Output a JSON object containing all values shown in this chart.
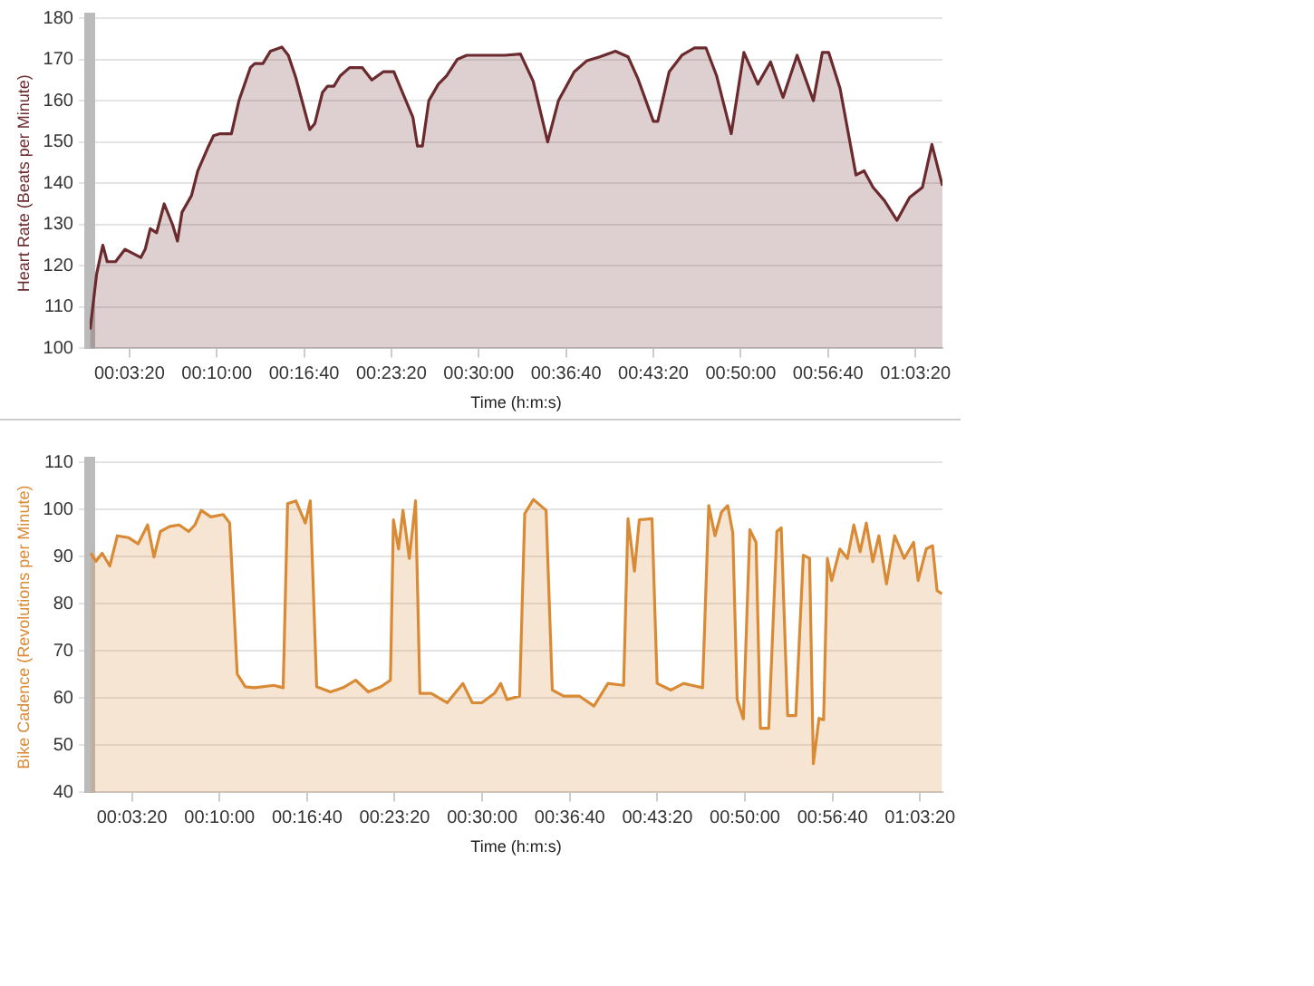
{
  "chart_data": [
    {
      "type": "area",
      "xlabel": "Time (h:m:s)",
      "ylabel": "Heart Rate (Beats per Minute)",
      "grid": "y",
      "legend": false,
      "marker": "none",
      "line_style": "solid",
      "xlim": [
        0.005,
        1.09
      ],
      "ylim": [
        100,
        180
      ],
      "yticks": [
        100,
        110,
        120,
        130,
        140,
        150,
        160,
        170,
        180
      ],
      "xticks": [
        {
          "value": 0.0556,
          "label": "00:03:20"
        },
        {
          "value": 0.1667,
          "label": "00:10:00"
        },
        {
          "value": 0.2778,
          "label": "00:16:40"
        },
        {
          "value": 0.3889,
          "label": "00:23:20"
        },
        {
          "value": 0.5,
          "label": "00:30:00"
        },
        {
          "value": 0.6111,
          "label": "00:36:40"
        },
        {
          "value": 0.7222,
          "label": "00:43:20"
        },
        {
          "value": 0.8333,
          "label": "00:50:00"
        },
        {
          "value": 0.9444,
          "label": "00:56:40"
        },
        {
          "value": 1.0556,
          "label": "01:03:20"
        }
      ],
      "series": [
        {
          "color": "#6b2a2e",
          "x": [
            0.0056,
            0.0138,
            0.0217,
            0.0273,
            0.0379,
            0.05,
            0.07,
            0.0756,
            0.0821,
            0.0901,
            0.0998,
            0.1104,
            0.1167,
            0.1225,
            0.1345,
            0.1425,
            0.1563,
            0.1626,
            0.1708,
            0.1853,
            0.1949,
            0.2094,
            0.215,
            0.2254,
            0.235,
            0.2495,
            0.2577,
            0.2674,
            0.285,
            0.2915,
            0.3012,
            0.3075,
            0.3157,
            0.3237,
            0.3357,
            0.3519,
            0.364,
            0.3785,
            0.392,
            0.4041,
            0.4162,
            0.422,
            0.4283,
            0.4365,
            0.4486,
            0.4589,
            0.4727,
            0.4848,
            0.5007,
            0.5331,
            0.5531,
            0.5693,
            0.5877,
            0.6014,
            0.6215,
            0.6377,
            0.6539,
            0.6739,
            0.6901,
            0.7022,
            0.7222,
            0.7278,
            0.7423,
            0.7585,
            0.7746,
            0.7891,
            0.8027,
            0.8213,
            0.8374,
            0.8551,
            0.8713,
            0.8872,
            0.9051,
            0.9258,
            0.9372,
            0.9452,
            0.9597,
            0.98,
            0.9903,
            1.0017,
            1.0162,
            1.0321,
            1.0483,
            1.0645,
            1.0766,
            1.09
          ],
          "values": [
            104.6,
            118,
            125,
            121,
            121,
            124,
            122,
            124,
            129,
            128,
            135,
            130,
            126,
            133,
            137,
            143,
            149,
            151.5,
            152,
            152,
            160,
            168,
            169,
            169,
            172,
            173,
            171,
            165.5,
            153,
            154.5,
            162,
            163.5,
            163.5,
            166,
            168,
            168,
            165,
            167,
            167,
            161.5,
            156,
            149,
            149,
            160,
            164,
            166,
            170,
            171,
            171,
            171,
            171.3,
            164.7,
            150,
            160,
            167,
            169.7,
            170.6,
            172,
            170.6,
            165.5,
            155,
            155,
            167,
            171,
            172.8,
            172.8,
            166,
            152,
            171.7,
            164,
            169.4,
            160.8,
            171,
            160,
            171.7,
            171.7,
            163,
            142,
            143,
            139,
            135.8,
            131,
            136.6,
            139,
            149.4,
            139.4
          ]
        }
      ]
    },
    {
      "type": "area",
      "xlabel": "Time (h:m:s)",
      "ylabel": "Bike Cadence (Revolutions per Minute)",
      "grid": "y",
      "legend": false,
      "marker": "none",
      "line_style": "solid",
      "xlim": [
        0.002,
        1.084
      ],
      "ylim": [
        40,
        110
      ],
      "yticks": [
        40,
        50,
        60,
        70,
        80,
        90,
        100,
        110
      ],
      "xticks": [
        {
          "value": 0.0556,
          "label": "00:03:20"
        },
        {
          "value": 0.1667,
          "label": "00:10:00"
        },
        {
          "value": 0.2778,
          "label": "00:16:40"
        },
        {
          "value": 0.3889,
          "label": "00:23:20"
        },
        {
          "value": 0.5,
          "label": "00:30:00"
        },
        {
          "value": 0.6111,
          "label": "00:36:40"
        },
        {
          "value": 0.7222,
          "label": "00:43:20"
        },
        {
          "value": 0.8333,
          "label": "00:50:00"
        },
        {
          "value": 0.9444,
          "label": "00:56:40"
        },
        {
          "value": 1.0556,
          "label": "01:03:20"
        }
      ],
      "series": [
        {
          "color": "#d98a35",
          "x": [
            0.0035,
            0.01,
            0.0179,
            0.0275,
            0.0371,
            0.0515,
            0.0635,
            0.0755,
            0.0836,
            0.0916,
            0.1036,
            0.1156,
            0.1276,
            0.1355,
            0.1436,
            0.1556,
            0.1715,
            0.1796,
            0.1892,
            0.1995,
            0.2115,
            0.2355,
            0.2475,
            0.2531,
            0.2636,
            0.2756,
            0.2819,
            0.29,
            0.3075,
            0.3236,
            0.3395,
            0.3555,
            0.3716,
            0.3836,
            0.3874,
            0.3939,
            0.3995,
            0.4076,
            0.4155,
            0.421,
            0.4354,
            0.4556,
            0.4755,
            0.4875,
            0.4995,
            0.5156,
            0.5235,
            0.5314,
            0.5475,
            0.554,
            0.565,
            0.5811,
            0.589,
            0.6034,
            0.6236,
            0.6418,
            0.6596,
            0.6795,
            0.685,
            0.6932,
            0.6994,
            0.7155,
            0.722,
            0.7395,
            0.7556,
            0.7796,
            0.7875,
            0.7954,
            0.8036,
            0.8115,
            0.818,
            0.8235,
            0.8314,
            0.8396,
            0.8475,
            0.853,
            0.8636,
            0.8739,
            0.8794,
            0.8876,
            0.8979,
            0.9075,
            0.9154,
            0.9202,
            0.9274,
            0.9332,
            0.938,
            0.9435,
            0.9538,
            0.9634,
            0.9716,
            0.9795,
            0.9874,
            0.9956,
            1.0034,
            1.013,
            1.0234,
            1.0354,
            1.0474,
            1.0531,
            1.0634,
            1.0714,
            1.0772,
            1.0834
          ],
          "values": [
            90.7,
            89,
            90.7,
            88,
            94.4,
            94,
            92.7,
            96.7,
            89.9,
            95.3,
            96.4,
            96.7,
            95.3,
            96.7,
            99.8,
            98.4,
            98.9,
            97.1,
            65.1,
            62.4,
            62.2,
            62.7,
            62.2,
            101.2,
            101.8,
            97.1,
            101.8,
            62.4,
            61.3,
            62.2,
            63.8,
            61.3,
            62.4,
            63.8,
            97.8,
            91.6,
            99.8,
            89.6,
            101.8,
            61,
            61,
            59,
            63.1,
            59,
            59,
            61,
            63.1,
            59.7,
            60.4,
            99.1,
            102.1,
            99.8,
            61.7,
            60.4,
            60.4,
            58.3,
            63.1,
            62.7,
            98,
            86.9,
            97.8,
            98,
            63.1,
            61.7,
            63.1,
            62.2,
            100.8,
            94.4,
            99.4,
            100.8,
            95,
            59.7,
            55.6,
            95.7,
            93,
            53.6,
            53.6,
            95.3,
            96.1,
            56.3,
            56.3,
            90.3,
            89.6,
            46.1,
            55.7,
            55.4,
            89.6,
            84.9,
            91.6,
            89.6,
            96.7,
            91,
            97.1,
            88.9,
            94.4,
            84.2,
            94.4,
            89.6,
            93,
            84.9,
            91.6,
            92.3,
            82.8,
            82.1
          ]
        }
      ]
    }
  ]
}
